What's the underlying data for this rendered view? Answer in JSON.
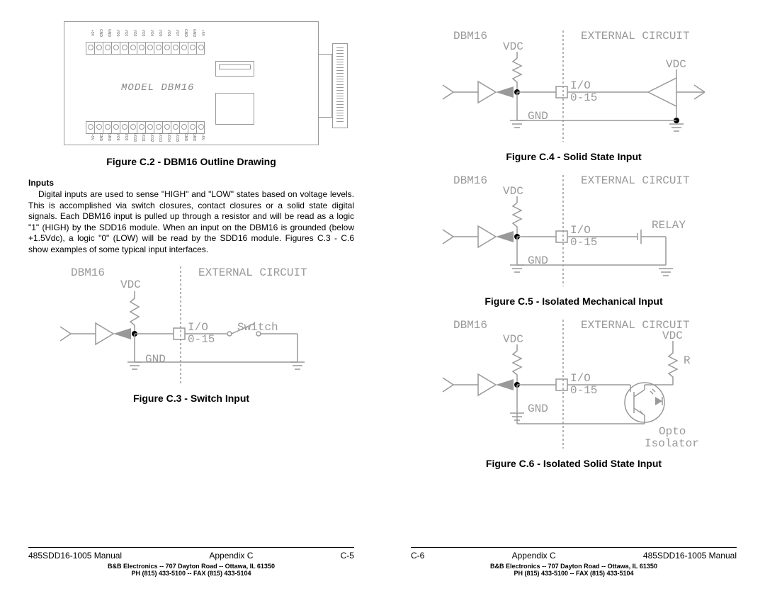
{
  "page_left": {
    "outline": {
      "model_label": "MODEL DBM16",
      "top_terminals": [
        "+5V",
        "GND",
        "GND",
        "I/O0",
        "I/O1",
        "I/O2",
        "I/O3",
        "I/O4",
        "I/O5",
        "I/O6",
        "I/O7",
        "GND",
        "GND",
        "+5V"
      ],
      "bottom_terminals": [
        "+5V",
        "GND",
        "GND",
        "I/O8",
        "I/O9",
        "I/O10",
        "I/O11",
        "I/O12",
        "I/O13",
        "I/O14",
        "I/O15",
        "GND",
        "GND",
        "+5V"
      ]
    },
    "fig_c2_caption": "Figure C.2 - DBM16 Outline Drawing",
    "inputs_heading": "Inputs",
    "inputs_text": "Digital inputs are used to sense \"HIGH\" and \"LOW\" states based on voltage levels.  This is accomplished via switch closures, contact closures or a solid state digital signals.  Each DBM16 input is pulled up through a resistor and will be read as a logic \"1\" (HIGH) by the SDD16 module.  When an input on the DBM16 is grounded (below +1.5Vdc), a logic \"0\" (LOW) will be read by the SDD16 module. Figures C.3 - C.6 show examples of some typical input interfaces.",
    "schematic_c3": {
      "dbm16": "DBM16",
      "external": "EXTERNAL CIRCUIT",
      "vdc": "VDC",
      "io": "I/O",
      "range": "0-15",
      "gnd": "GND",
      "switch": "Switch"
    },
    "fig_c3_caption": "Figure C.3 - Switch Input",
    "footer": {
      "manual": "485SDD16-1005 Manual",
      "appendix": "Appendix C",
      "pagenum": "C-5",
      "company": "B&B Electronics  --  707 Dayton Road  --  Ottawa, IL  61350",
      "phone": "PH (815) 433-5100  --  FAX (815) 433-5104"
    }
  },
  "page_right": {
    "schematic_c4": {
      "dbm16": "DBM16",
      "external": "EXTERNAL CIRCUIT",
      "vdc": "VDC",
      "vdc2": "VDC",
      "io": "I/O",
      "range": "0-15",
      "gnd": "GND"
    },
    "fig_c4_caption": "Figure C.4 - Solid State Input",
    "schematic_c5": {
      "dbm16": "DBM16",
      "external": "EXTERNAL CIRCUIT",
      "vdc": "VDC",
      "io": "I/O",
      "range": "0-15",
      "gnd": "GND",
      "relay": "RELAY"
    },
    "fig_c5_caption": "Figure C.5 - Isolated Mechanical Input",
    "schematic_c6": {
      "dbm16": "DBM16",
      "external": "EXTERNAL CIRCUIT",
      "vdc": "VDC",
      "vdc2": "VDC",
      "io": "I/O",
      "range": "0-15",
      "gnd": "GND",
      "r": "R",
      "opto": "Opto",
      "isolator": "Isolator"
    },
    "fig_c6_caption": "Figure C.6 - Isolated Solid State Input",
    "footer": {
      "manual": "485SDD16-1005 Manual",
      "appendix": "Appendix C",
      "pagenum": "C-6",
      "company": "B&B Electronics  --  707 Dayton Road  --  Ottawa, IL  61350",
      "phone": "PH (815) 433-5100  --  FAX (815) 433-5104"
    }
  }
}
